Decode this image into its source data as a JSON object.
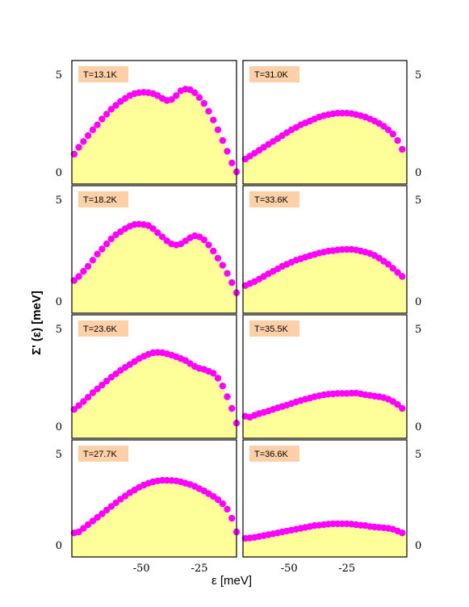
{
  "figure": {
    "ylabel": "Σ' (ε) [meV]",
    "xlabel": "ε  [meV]",
    "colors": {
      "fill": "#ffff99",
      "points": "#ff00ff",
      "label_bg": "#fdd0a8",
      "frame": "#000000"
    }
  },
  "chart_data": [
    {
      "type": "scatter",
      "label": "T=13.1K",
      "xlim": [
        -80,
        -9
      ],
      "ylim": [
        0,
        5
      ],
      "yticks": [
        0,
        5
      ],
      "xticks": [
        -50,
        -25
      ],
      "x": [
        -79,
        -77,
        -75,
        -73,
        -71,
        -69,
        -67,
        -65,
        -63,
        -61,
        -59,
        -57,
        -55,
        -53,
        -51,
        -49,
        -47,
        -45,
        -43,
        -41,
        -39,
        -37,
        -35,
        -33,
        -31,
        -29,
        -27,
        -25,
        -23,
        -21,
        -19,
        -17,
        -15,
        -13,
        -11,
        -9
      ],
      "y": [
        0.95,
        1.3,
        1.6,
        1.9,
        2.2,
        2.45,
        2.75,
        3.0,
        3.25,
        3.45,
        3.65,
        3.8,
        3.95,
        4.05,
        4.1,
        4.12,
        4.1,
        4.05,
        3.95,
        3.8,
        3.7,
        3.75,
        3.95,
        4.2,
        4.28,
        4.25,
        4.1,
        3.85,
        3.55,
        3.15,
        2.7,
        2.2,
        1.65,
        1.1,
        0.5,
        0.05
      ]
    },
    {
      "type": "scatter",
      "label": "T=31.0K",
      "xlim": [
        -70,
        1
      ],
      "ylim": [
        0,
        5
      ],
      "yticks": [
        0,
        5
      ],
      "xticks": [
        -50,
        -25
      ],
      "x": [
        -69,
        -67,
        -65,
        -63,
        -61,
        -59,
        -57,
        -55,
        -53,
        -51,
        -49,
        -47,
        -45,
        -43,
        -41,
        -39,
        -37,
        -35,
        -33,
        -31,
        -29,
        -27,
        -25,
        -23,
        -21,
        -19,
        -17,
        -15,
        -13,
        -11,
        -9,
        -7,
        -5,
        -3,
        -1
      ],
      "y": [
        0.7,
        0.85,
        1.0,
        1.15,
        1.3,
        1.45,
        1.6,
        1.75,
        1.9,
        2.05,
        2.2,
        2.32,
        2.45,
        2.55,
        2.65,
        2.75,
        2.85,
        2.92,
        2.98,
        3.02,
        3.05,
        3.05,
        3.05,
        3.03,
        2.98,
        2.92,
        2.85,
        2.75,
        2.65,
        2.52,
        2.38,
        2.2,
        1.98,
        1.65,
        1.2
      ]
    },
    {
      "type": "scatter",
      "label": "T=18.2K",
      "xlim": [
        -80,
        -9
      ],
      "ylim": [
        0,
        5
      ],
      "yticks": [
        0,
        5
      ],
      "xticks": [
        -50,
        -25
      ],
      "x": [
        -79,
        -77,
        -75,
        -73,
        -71,
        -69,
        -67,
        -65,
        -63,
        -61,
        -59,
        -57,
        -55,
        -53,
        -51,
        -49,
        -47,
        -45,
        -43,
        -41,
        -39,
        -37,
        -35,
        -33,
        -31,
        -29,
        -27,
        -25,
        -23,
        -21,
        -19,
        -17,
        -15,
        -13,
        -11,
        -9
      ],
      "y": [
        1.05,
        1.25,
        1.5,
        1.75,
        2.05,
        2.35,
        2.6,
        2.85,
        3.1,
        3.3,
        3.45,
        3.6,
        3.72,
        3.8,
        3.82,
        3.8,
        3.75,
        3.6,
        3.4,
        3.2,
        3.0,
        2.85,
        2.8,
        2.85,
        3.0,
        3.15,
        3.25,
        3.2,
        3.05,
        2.8,
        2.5,
        2.15,
        1.8,
        1.4,
        0.95,
        0.45
      ]
    },
    {
      "type": "scatter",
      "label": "T=33.6K",
      "xlim": [
        -70,
        1
      ],
      "ylim": [
        0,
        5
      ],
      "yticks": [
        0,
        5
      ],
      "xticks": [
        -50,
        -25
      ],
      "x": [
        -69,
        -67,
        -65,
        -63,
        -61,
        -59,
        -57,
        -55,
        -53,
        -51,
        -49,
        -47,
        -45,
        -43,
        -41,
        -39,
        -37,
        -35,
        -33,
        -31,
        -29,
        -27,
        -25,
        -23,
        -21,
        -19,
        -17,
        -15,
        -13,
        -11,
        -9,
        -7,
        -5,
        -3,
        -1
      ],
      "y": [
        0.8,
        0.9,
        1.0,
        1.12,
        1.25,
        1.38,
        1.5,
        1.62,
        1.75,
        1.85,
        1.95,
        2.05,
        2.12,
        2.2,
        2.27,
        2.33,
        2.4,
        2.45,
        2.5,
        2.52,
        2.55,
        2.57,
        2.58,
        2.58,
        2.55,
        2.5,
        2.45,
        2.38,
        2.28,
        2.15,
        2.0,
        1.85,
        1.65,
        1.45,
        1.25
      ]
    },
    {
      "type": "scatter",
      "label": "T=23.6K",
      "xlim": [
        -80,
        -9
      ],
      "ylim": [
        0,
        5
      ],
      "yticks": [
        0,
        5
      ],
      "xticks": [
        -50,
        -25
      ],
      "x": [
        -79,
        -77,
        -75,
        -73,
        -71,
        -69,
        -67,
        -65,
        -63,
        -61,
        -59,
        -57,
        -55,
        -53,
        -51,
        -49,
        -47,
        -45,
        -43,
        -41,
        -39,
        -37,
        -35,
        -33,
        -31,
        -29,
        -27,
        -25,
        -23,
        -21,
        -19,
        -17,
        -15,
        -13,
        -11,
        -9
      ],
      "y": [
        0.9,
        1.1,
        1.3,
        1.52,
        1.75,
        1.95,
        2.15,
        2.35,
        2.55,
        2.72,
        2.9,
        3.05,
        3.2,
        3.35,
        3.5,
        3.62,
        3.72,
        3.8,
        3.82,
        3.8,
        3.75,
        3.68,
        3.6,
        3.5,
        3.4,
        3.25,
        3.1,
        3.0,
        2.95,
        2.85,
        2.75,
        2.5,
        2.1,
        1.55,
        0.95,
        0.2
      ]
    },
    {
      "type": "scatter",
      "label": "T=35.5K",
      "xlim": [
        -70,
        1
      ],
      "ylim": [
        0,
        5
      ],
      "yticks": [
        0,
        5
      ],
      "xticks": [
        -50,
        -25
      ],
      "x": [
        -69,
        -67,
        -65,
        -63,
        -61,
        -59,
        -57,
        -55,
        -53,
        -51,
        -49,
        -47,
        -45,
        -43,
        -41,
        -39,
        -37,
        -35,
        -33,
        -31,
        -29,
        -27,
        -25,
        -23,
        -21,
        -19,
        -17,
        -15,
        -13,
        -11,
        -9,
        -7,
        -5,
        -3,
        -1
      ],
      "y": [
        0.55,
        0.5,
        0.6,
        0.68,
        0.75,
        0.82,
        0.9,
        0.98,
        1.05,
        1.12,
        1.2,
        1.28,
        1.35,
        1.42,
        1.48,
        1.55,
        1.6,
        1.65,
        1.68,
        1.7,
        1.72,
        1.72,
        1.72,
        1.73,
        1.74,
        1.7,
        1.65,
        1.62,
        1.58,
        1.55,
        1.5,
        1.42,
        1.3,
        1.15,
        0.95
      ]
    },
    {
      "type": "scatter",
      "label": "T=27.7K",
      "xlim": [
        -80,
        -9
      ],
      "ylim": [
        0,
        5
      ],
      "yticks": [
        0,
        5
      ],
      "xticks": [
        -50,
        -25
      ],
      "x": [
        -79,
        -77,
        -75,
        -73,
        -71,
        -69,
        -67,
        -65,
        -63,
        -61,
        -59,
        -57,
        -55,
        -53,
        -51,
        -49,
        -47,
        -45,
        -43,
        -41,
        -39,
        -37,
        -35,
        -33,
        -31,
        -29,
        -27,
        -25,
        -23,
        -21,
        -19,
        -17,
        -15,
        -13,
        -11,
        -9
      ],
      "y": [
        0.7,
        0.75,
        0.95,
        1.15,
        1.35,
        1.55,
        1.75,
        1.95,
        2.15,
        2.35,
        2.55,
        2.72,
        2.9,
        3.05,
        3.2,
        3.32,
        3.42,
        3.5,
        3.55,
        3.58,
        3.58,
        3.57,
        3.55,
        3.5,
        3.42,
        3.35,
        3.25,
        3.12,
        3.0,
        2.85,
        2.7,
        2.52,
        2.3,
        2.0,
        1.5,
        0.75
      ]
    },
    {
      "type": "scatter",
      "label": "T=36.6K",
      "xlim": [
        -70,
        1
      ],
      "ylim": [
        0,
        5
      ],
      "yticks": [
        0,
        5
      ],
      "xticks": [
        -50,
        -25
      ],
      "x": [
        -69,
        -67,
        -65,
        -63,
        -61,
        -59,
        -57,
        -55,
        -53,
        -51,
        -49,
        -47,
        -45,
        -43,
        -41,
        -39,
        -37,
        -35,
        -33,
        -31,
        -29,
        -27,
        -25,
        -23,
        -21,
        -19,
        -17,
        -15,
        -13,
        -11,
        -9,
        -7,
        -5,
        -3,
        -1
      ],
      "y": [
        0.4,
        0.42,
        0.45,
        0.5,
        0.55,
        0.6,
        0.65,
        0.7,
        0.75,
        0.8,
        0.85,
        0.9,
        0.95,
        1.0,
        1.05,
        1.1,
        1.12,
        1.15,
        1.18,
        1.2,
        1.2,
        1.2,
        1.2,
        1.18,
        1.15,
        1.12,
        1.1,
        1.05,
        1.02,
        1.0,
        0.98,
        0.95,
        0.9,
        0.8,
        0.7
      ]
    }
  ]
}
